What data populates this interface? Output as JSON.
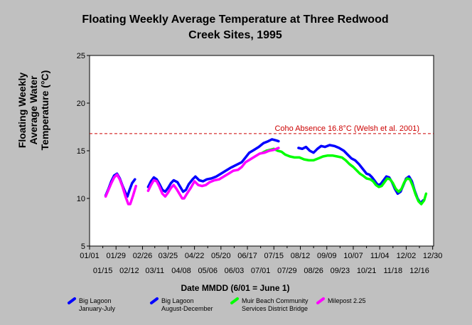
{
  "chart_data": {
    "type": "line",
    "title_line1": "Floating Weekly Average Temperature at Three Redwood",
    "title_line2": "Creek Sites, 1995",
    "ylabel_lines": [
      "Floating Weekly",
      "Average Water",
      "Temperature (°C)"
    ],
    "xlabel": "Date MMDD (6/01 = June 1)",
    "ylim": [
      5,
      25
    ],
    "yticks": [
      "5",
      "10",
      "15",
      "20",
      "25"
    ],
    "xlim": [
      1,
      365
    ],
    "xticks_upper": [
      {
        "day": 1,
        "label": "01/01"
      },
      {
        "day": 29,
        "label": "01/29"
      },
      {
        "day": 57,
        "label": "02/26"
      },
      {
        "day": 84,
        "label": "03/25"
      },
      {
        "day": 112,
        "label": "04/22"
      },
      {
        "day": 140,
        "label": "05/20"
      },
      {
        "day": 168,
        "label": "06/17"
      },
      {
        "day": 196,
        "label": "07/15"
      },
      {
        "day": 224,
        "label": "08/12"
      },
      {
        "day": 252,
        "label": "09/09"
      },
      {
        "day": 280,
        "label": "10/07"
      },
      {
        "day": 308,
        "label": "11/04"
      },
      {
        "day": 336,
        "label": "12/02"
      },
      {
        "day": 364,
        "label": "12/30"
      }
    ],
    "xticks_lower": [
      {
        "day": 15,
        "label": "01/15"
      },
      {
        "day": 43,
        "label": "02/12"
      },
      {
        "day": 70,
        "label": "03/11"
      },
      {
        "day": 98,
        "label": "04/08"
      },
      {
        "day": 126,
        "label": "05/06"
      },
      {
        "day": 154,
        "label": "06/03"
      },
      {
        "day": 182,
        "label": "07/01"
      },
      {
        "day": 210,
        "label": "07/29"
      },
      {
        "day": 238,
        "label": "08/26"
      },
      {
        "day": 266,
        "label": "09/23"
      },
      {
        "day": 294,
        "label": "10/21"
      },
      {
        "day": 322,
        "label": "11/18"
      },
      {
        "day": 350,
        "label": "12/16"
      }
    ],
    "threshold": {
      "value": 16.8,
      "label": "Coho Absence 16.8°C (Welsh et al. 2001)",
      "color": "#cc0000"
    },
    "series": [
      {
        "name": "Big Lagoon January-July",
        "legend_lines": [
          "Big Lagoon",
          "January-July"
        ],
        "color": "#0000ff",
        "segments": [
          [
            [
              18,
              10.3
            ],
            [
              21,
              11.0
            ],
            [
              24,
              11.8
            ],
            [
              27,
              12.4
            ],
            [
              30,
              12.6
            ],
            [
              33,
              12.1
            ],
            [
              36,
              11.3
            ],
            [
              39,
              10.6
            ],
            [
              41,
              10.2
            ],
            [
              43,
              10.8
            ],
            [
              46,
              11.6
            ],
            [
              49,
              12.0
            ]
          ],
          [
            [
              63,
              11.2
            ],
            [
              66,
              11.8
            ],
            [
              69,
              12.2
            ],
            [
              72,
              12.0
            ],
            [
              75,
              11.5
            ],
            [
              78,
              10.9
            ],
            [
              81,
              10.7
            ],
            [
              84,
              11.1
            ],
            [
              87,
              11.6
            ],
            [
              90,
              11.9
            ],
            [
              94,
              11.7
            ],
            [
              97,
              11.2
            ],
            [
              100,
              10.7
            ],
            [
              103,
              10.9
            ],
            [
              106,
              11.5
            ],
            [
              110,
              12.0
            ],
            [
              113,
              12.3
            ],
            [
              117,
              11.9
            ],
            [
              121,
              11.8
            ],
            [
              125,
              12.0
            ],
            [
              130,
              12.1
            ],
            [
              135,
              12.3
            ],
            [
              140,
              12.6
            ],
            [
              145,
              12.9
            ],
            [
              150,
              13.2
            ],
            [
              156,
              13.5
            ],
            [
              162,
              13.8
            ],
            [
              166,
              14.3
            ],
            [
              170,
              14.8
            ],
            [
              175,
              15.1
            ],
            [
              180,
              15.4
            ],
            [
              185,
              15.8
            ],
            [
              190,
              16.0
            ],
            [
              194,
              16.2
            ],
            [
              198,
              16.1
            ],
            [
              201,
              16.0
            ]
          ]
        ]
      },
      {
        "name": "Big Lagoon August-December",
        "legend_lines": [
          "Big Lagoon",
          "August-December"
        ],
        "color": "#0000ff",
        "segments": [
          [
            [
              222,
              15.3
            ],
            [
              226,
              15.2
            ],
            [
              230,
              15.4
            ],
            [
              234,
              15.0
            ],
            [
              238,
              14.8
            ],
            [
              242,
              15.2
            ],
            [
              246,
              15.5
            ],
            [
              250,
              15.4
            ],
            [
              255,
              15.6
            ],
            [
              260,
              15.5
            ],
            [
              265,
              15.3
            ],
            [
              270,
              15.0
            ],
            [
              274,
              14.6
            ],
            [
              278,
              14.2
            ],
            [
              282,
              14.0
            ],
            [
              286,
              13.6
            ],
            [
              290,
              13.1
            ],
            [
              294,
              12.6
            ],
            [
              297,
              12.5
            ],
            [
              300,
              12.2
            ],
            [
              303,
              11.8
            ],
            [
              306,
              11.4
            ],
            [
              309,
              11.5
            ],
            [
              312,
              11.9
            ],
            [
              315,
              12.3
            ],
            [
              318,
              12.2
            ],
            [
              321,
              11.7
            ],
            [
              324,
              11.0
            ],
            [
              327,
              10.5
            ],
            [
              330,
              10.7
            ],
            [
              333,
              11.4
            ],
            [
              336,
              12.1
            ],
            [
              339,
              12.3
            ],
            [
              342,
              11.8
            ],
            [
              345,
              10.8
            ],
            [
              348,
              10.0
            ],
            [
              351,
              9.5
            ],
            [
              354,
              9.8
            ]
          ]
        ]
      },
      {
        "name": "Muir Beach Community Services District Bridge",
        "legend_lines": [
          "Muir Beach Community",
          "Services District Bridge"
        ],
        "color": "#00ff00",
        "segments": [
          [
            [
              184,
              14.8
            ],
            [
              188,
              15.0
            ],
            [
              192,
              15.1
            ],
            [
              196,
              15.2
            ],
            [
              200,
              15.0
            ],
            [
              204,
              14.9
            ],
            [
              208,
              14.6
            ],
            [
              213,
              14.4
            ],
            [
              218,
              14.3
            ],
            [
              223,
              14.3
            ],
            [
              228,
              14.1
            ],
            [
              233,
              14.0
            ],
            [
              238,
              14.0
            ],
            [
              243,
              14.2
            ],
            [
              248,
              14.4
            ],
            [
              253,
              14.5
            ],
            [
              258,
              14.5
            ],
            [
              263,
              14.4
            ],
            [
              268,
              14.3
            ],
            [
              272,
              14.0
            ],
            [
              276,
              13.6
            ],
            [
              280,
              13.3
            ],
            [
              284,
              12.9
            ],
            [
              287,
              12.6
            ],
            [
              290,
              12.4
            ],
            [
              294,
              12.1
            ],
            [
              298,
              12.0
            ],
            [
              301,
              11.8
            ],
            [
              304,
              11.4
            ],
            [
              307,
              11.2
            ],
            [
              310,
              11.3
            ],
            [
              313,
              11.7
            ],
            [
              316,
              12.1
            ],
            [
              319,
              12.0
            ],
            [
              322,
              11.6
            ],
            [
              325,
              11.0
            ],
            [
              328,
              10.7
            ],
            [
              331,
              11.0
            ],
            [
              334,
              11.7
            ],
            [
              337,
              12.1
            ],
            [
              340,
              12.0
            ],
            [
              343,
              11.3
            ],
            [
              346,
              10.4
            ],
            [
              349,
              9.7
            ],
            [
              352,
              9.4
            ],
            [
              355,
              9.8
            ],
            [
              357,
              10.5
            ]
          ]
        ]
      },
      {
        "name": "Milepost 2.25",
        "legend_lines": [
          "Milepost 2.25"
        ],
        "color": "#ff00ff",
        "segments": [
          [
            [
              18,
              10.2
            ],
            [
              21,
              10.9
            ],
            [
              24,
              11.6
            ],
            [
              27,
              12.2
            ],
            [
              30,
              12.5
            ],
            [
              33,
              12.0
            ],
            [
              36,
              11.2
            ],
            [
              39,
              10.2
            ],
            [
              42,
              9.4
            ],
            [
              44,
              9.4
            ],
            [
              47,
              10.3
            ],
            [
              50,
              11.3
            ]
          ],
          [
            [
              63,
              10.8
            ],
            [
              66,
              11.4
            ],
            [
              69,
              11.9
            ],
            [
              72,
              11.8
            ],
            [
              75,
              11.2
            ],
            [
              78,
              10.5
            ],
            [
              81,
              10.2
            ],
            [
              84,
              10.6
            ],
            [
              87,
              11.1
            ],
            [
              90,
              11.4
            ],
            [
              93,
              11.0
            ],
            [
              96,
              10.5
            ],
            [
              99,
              10.0
            ],
            [
              101,
              10.0
            ],
            [
              104,
              10.5
            ],
            [
              108,
              11.1
            ],
            [
              112,
              11.8
            ],
            [
              116,
              11.4
            ],
            [
              120,
              11.3
            ],
            [
              124,
              11.4
            ],
            [
              128,
              11.7
            ],
            [
              133,
              11.9
            ],
            [
              138,
              12.0
            ],
            [
              143,
              12.3
            ],
            [
              148,
              12.6
            ],
            [
              153,
              12.9
            ],
            [
              158,
              13.0
            ],
            [
              162,
              13.3
            ],
            [
              166,
              13.8
            ],
            [
              171,
              14.1
            ],
            [
              176,
              14.4
            ],
            [
              181,
              14.7
            ],
            [
              186,
              14.8
            ],
            [
              191,
              15.0
            ],
            [
              196,
              15.1
            ],
            [
              201,
              15.3
            ]
          ]
        ]
      }
    ]
  }
}
